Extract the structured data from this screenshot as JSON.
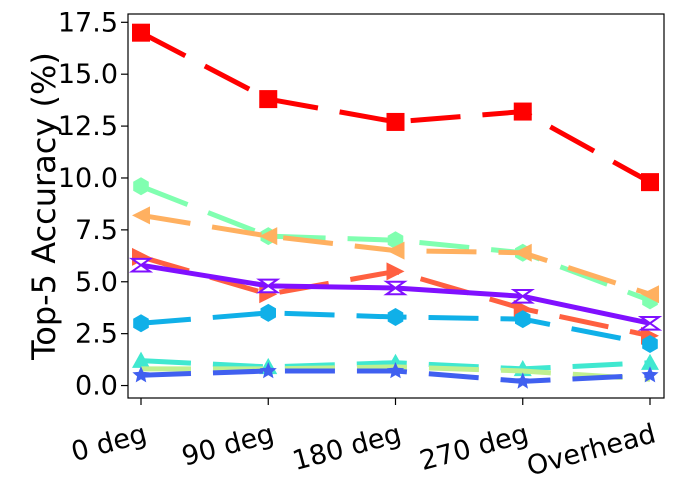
{
  "chart_data": {
    "type": "line",
    "title": "",
    "xlabel": "",
    "ylabel": "Top-5 Accuracy (%)",
    "categories": [
      "0 deg",
      "90 deg",
      "180 deg",
      "270 deg",
      "Overhead"
    ],
    "ylim": [
      -0.6,
      17.9
    ],
    "yticks": [
      "0.0",
      "2.5",
      "5.0",
      "7.5",
      "10.0",
      "12.5",
      "15.0",
      "17.5"
    ],
    "ytick_values": [
      0,
      2.5,
      5,
      7.5,
      10,
      12.5,
      15,
      17.5
    ],
    "grid": false,
    "legend": "none",
    "series": [
      {
        "color": "#ff0000",
        "dash": "long",
        "marker": "square",
        "values": [
          17.0,
          13.8,
          12.7,
          13.2,
          9.8
        ]
      },
      {
        "color": "#80ffb0",
        "dash": "long",
        "marker": "hexagon",
        "values": [
          9.6,
          7.2,
          7.0,
          6.4,
          4.1
        ]
      },
      {
        "color": "#ffb060",
        "dash": "long",
        "marker": "triangle-left",
        "values": [
          8.2,
          7.2,
          6.5,
          6.4,
          4.4
        ]
      },
      {
        "color": "#ff6040",
        "dash": "long",
        "marker": "triangle-right",
        "values": [
          6.2,
          4.4,
          5.5,
          3.7,
          2.4
        ]
      },
      {
        "color": "#8010ff",
        "dash": "solid",
        "marker": "bowtie",
        "values": [
          5.8,
          4.8,
          4.7,
          4.3,
          3.0
        ]
      },
      {
        "color": "#10b0e8",
        "dash": "long",
        "marker": "hexagon",
        "values": [
          3.0,
          3.5,
          3.3,
          3.2,
          2.0
        ]
      },
      {
        "color": "#40e8d0",
        "dash": "long",
        "marker": "triangle-up",
        "values": [
          1.2,
          0.9,
          1.1,
          0.8,
          1.1
        ]
      },
      {
        "color": "#c0f090",
        "dash": "long",
        "marker": "none",
        "values": [
          0.8,
          0.8,
          0.9,
          0.7,
          0.3
        ]
      },
      {
        "color": "#4060f0",
        "dash": "long",
        "marker": "star",
        "values": [
          0.5,
          0.7,
          0.7,
          0.2,
          0.5
        ]
      }
    ]
  }
}
